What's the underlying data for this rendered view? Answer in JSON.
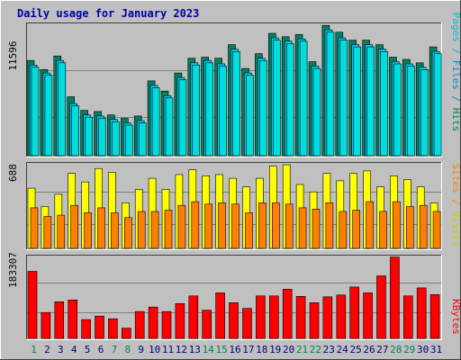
{
  "title": "Daily usage for January 2023",
  "colors": {
    "background": "#c0c0c0",
    "border_dark": "#404040",
    "border_light": "#ffffff",
    "panel_bg": "#c0c0c0",
    "gridline": "#808080",
    "title": "#0000aa",
    "hits": "#00805c",
    "files": "#00ccff",
    "pages": "#00dddd",
    "visits": "#ffff00",
    "sites": "#ff8000",
    "kbytes": "#ff0000",
    "weekday_label": "#000080",
    "weekend_label": "#00805c"
  },
  "panel_labels": {
    "hits_panel": [
      {
        "text": "Pages",
        "color": "#00bbcc"
      },
      {
        "text": " / ",
        "color": "#00bbcc"
      },
      {
        "text": "Files",
        "color": "#0088cc"
      },
      {
        "text": " / ",
        "color": "#0088cc"
      },
      {
        "text": "Hits",
        "color": "#00805c"
      }
    ],
    "visits_panel": [
      {
        "text": "Sites",
        "color": "#ff8000"
      },
      {
        "text": " / ",
        "color": "#ff8000"
      },
      {
        "text": "Visits",
        "color": "#cccc00"
      }
    ],
    "kbytes_panel": [
      {
        "text": "KBytes",
        "color": "#ff0000"
      }
    ]
  },
  "chart_data": [
    {
      "type": "bar",
      "title": "Daily usage for January 2023",
      "ylabel": "11596",
      "ylim": [
        0,
        11596
      ],
      "categories": [
        "1",
        "2",
        "3",
        "4",
        "5",
        "6",
        "7",
        "8",
        "9",
        "10",
        "11",
        "12",
        "13",
        "14",
        "15",
        "16",
        "17",
        "18",
        "19",
        "20",
        "21",
        "22",
        "23",
        "24",
        "25",
        "26",
        "27",
        "28",
        "29",
        "30",
        "31"
      ],
      "weekend_days": [
        1,
        7,
        8,
        14,
        15,
        21,
        22,
        28,
        29
      ],
      "grid": true,
      "series": [
        {
          "name": "Hits",
          "values": [
            8400,
            7600,
            8800,
            5200,
            4000,
            3900,
            3600,
            3300,
            3500,
            6600,
            5700,
            7300,
            8600,
            8700,
            8600,
            9800,
            7700,
            9000,
            10800,
            10500,
            10700,
            8300,
            11500,
            10900,
            10200,
            10200,
            9800,
            8700,
            8500,
            8200,
            9600
          ]
        },
        {
          "name": "Files",
          "values": [
            8000,
            7300,
            8400,
            4600,
            3600,
            3500,
            3200,
            2900,
            3100,
            6200,
            5300,
            6900,
            8200,
            8400,
            8100,
            9400,
            7300,
            8600,
            10400,
            10100,
            10300,
            7900,
            11100,
            10400,
            9800,
            9800,
            9400,
            8300,
            8100,
            7800,
            9200
          ]
        },
        {
          "name": "Pages",
          "values": [
            7800,
            7100,
            8200,
            4400,
            3400,
            3300,
            3000,
            2700,
            2900,
            6000,
            5100,
            6700,
            8000,
            8200,
            7900,
            9200,
            7100,
            8400,
            10200,
            9900,
            10100,
            7700,
            10900,
            10200,
            9600,
            9600,
            9200,
            8100,
            7900,
            7600,
            9000
          ]
        }
      ]
    },
    {
      "type": "bar",
      "ylabel": "688",
      "ylim": [
        0,
        688
      ],
      "categories": [
        "1",
        "2",
        "3",
        "4",
        "5",
        "6",
        "7",
        "8",
        "9",
        "10",
        "11",
        "12",
        "13",
        "14",
        "15",
        "16",
        "17",
        "18",
        "19",
        "20",
        "21",
        "22",
        "23",
        "24",
        "25",
        "26",
        "27",
        "28",
        "29",
        "30",
        "31"
      ],
      "grid": true,
      "series": [
        {
          "name": "Visits",
          "values": [
            490,
            340,
            440,
            610,
            540,
            650,
            620,
            370,
            480,
            570,
            480,
            600,
            640,
            590,
            600,
            570,
            500,
            570,
            670,
            680,
            520,
            460,
            610,
            550,
            610,
            630,
            500,
            590,
            560,
            500,
            370
          ]
        },
        {
          "name": "Sites",
          "values": [
            330,
            260,
            270,
            350,
            290,
            330,
            290,
            250,
            300,
            300,
            310,
            350,
            380,
            360,
            370,
            360,
            290,
            370,
            370,
            360,
            330,
            320,
            370,
            300,
            310,
            380,
            300,
            380,
            340,
            350,
            300
          ]
        }
      ]
    },
    {
      "type": "bar",
      "ylabel": "183307",
      "ylim": [
        0,
        183307
      ],
      "categories": [
        "1",
        "2",
        "3",
        "4",
        "5",
        "6",
        "7",
        "8",
        "9",
        "10",
        "11",
        "12",
        "13",
        "14",
        "15",
        "16",
        "17",
        "18",
        "19",
        "20",
        "21",
        "22",
        "23",
        "24",
        "25",
        "26",
        "27",
        "28",
        "29",
        "30",
        "31"
      ],
      "grid": true,
      "series": [
        {
          "name": "KBytes",
          "values": [
            150000,
            58000,
            82000,
            86000,
            42000,
            50000,
            44000,
            23000,
            60000,
            70000,
            60000,
            78000,
            95000,
            63000,
            102000,
            80000,
            67000,
            95000,
            95000,
            110000,
            94000,
            80000,
            93000,
            97000,
            115000,
            102000,
            140000,
            182000,
            95000,
            113000,
            98000
          ]
        }
      ]
    }
  ]
}
